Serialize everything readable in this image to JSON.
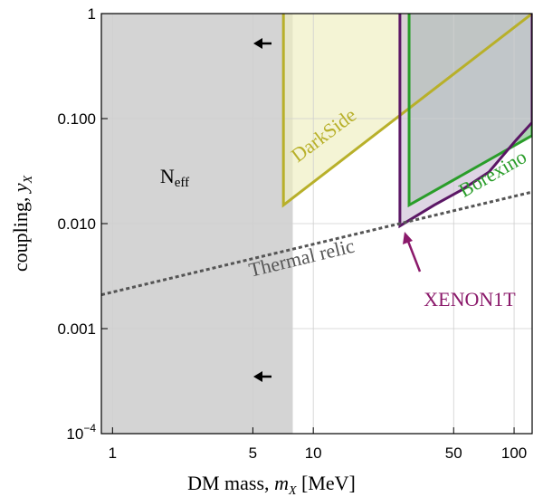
{
  "chart_data": {
    "type": "region",
    "xscale": "log",
    "yscale": "log",
    "xlim": [
      0.88,
      123
    ],
    "ylim": [
      0.0001,
      1
    ],
    "xticks": [
      1,
      5,
      10,
      50,
      100
    ],
    "yticks": [
      {
        "value": 0.0001,
        "label": "10",
        "superscript": "−4"
      },
      {
        "value": 0.001,
        "label": "0.001"
      },
      {
        "value": 0.01,
        "label": "0.010"
      },
      {
        "value": 0.1,
        "label": "0.100"
      },
      1
    ],
    "grid": true,
    "xlabel": [
      "DM mass, ",
      "m",
      "X",
      " [MeV]"
    ],
    "ylabel": [
      "coupling, ",
      "y",
      "X"
    ],
    "series": [
      {
        "name": "N",
        "name_sub": "eff",
        "fill": "#d4d4d4",
        "color": "#000000",
        "x": [
          0.88,
          7.9,
          7.9,
          0.88
        ],
        "y": [
          1,
          1,
          0.0001,
          0.0001
        ]
      },
      {
        "name": "DarkSide",
        "fill": "#eeeebf",
        "color": "#b8b02a",
        "x": [
          7.1,
          7.1,
          123
        ],
        "y": [
          1,
          0.015,
          1
        ]
      },
      {
        "name": "Borexino",
        "fill": "#7fbf8a",
        "color": "#2a9d2a",
        "x": [
          30,
          30,
          123,
          123
        ],
        "y": [
          1,
          0.015,
          0.069,
          1
        ]
      },
      {
        "name": "XENON1T",
        "fill": "#cdbfd6",
        "color": "#5b1665",
        "label_color": "#8b1a6b",
        "x": [
          27,
          27,
          33,
          40,
          55,
          75,
          102,
          123,
          123
        ],
        "y": [
          1,
          0.0095,
          0.012,
          0.015,
          0.021,
          0.031,
          0.062,
          0.092,
          1
        ]
      },
      {
        "name": "Thermal relic",
        "color": "#555555",
        "style": "dotted",
        "x": [
          0.88,
          123
        ],
        "y": [
          0.0021,
          0.02
        ]
      }
    ]
  }
}
